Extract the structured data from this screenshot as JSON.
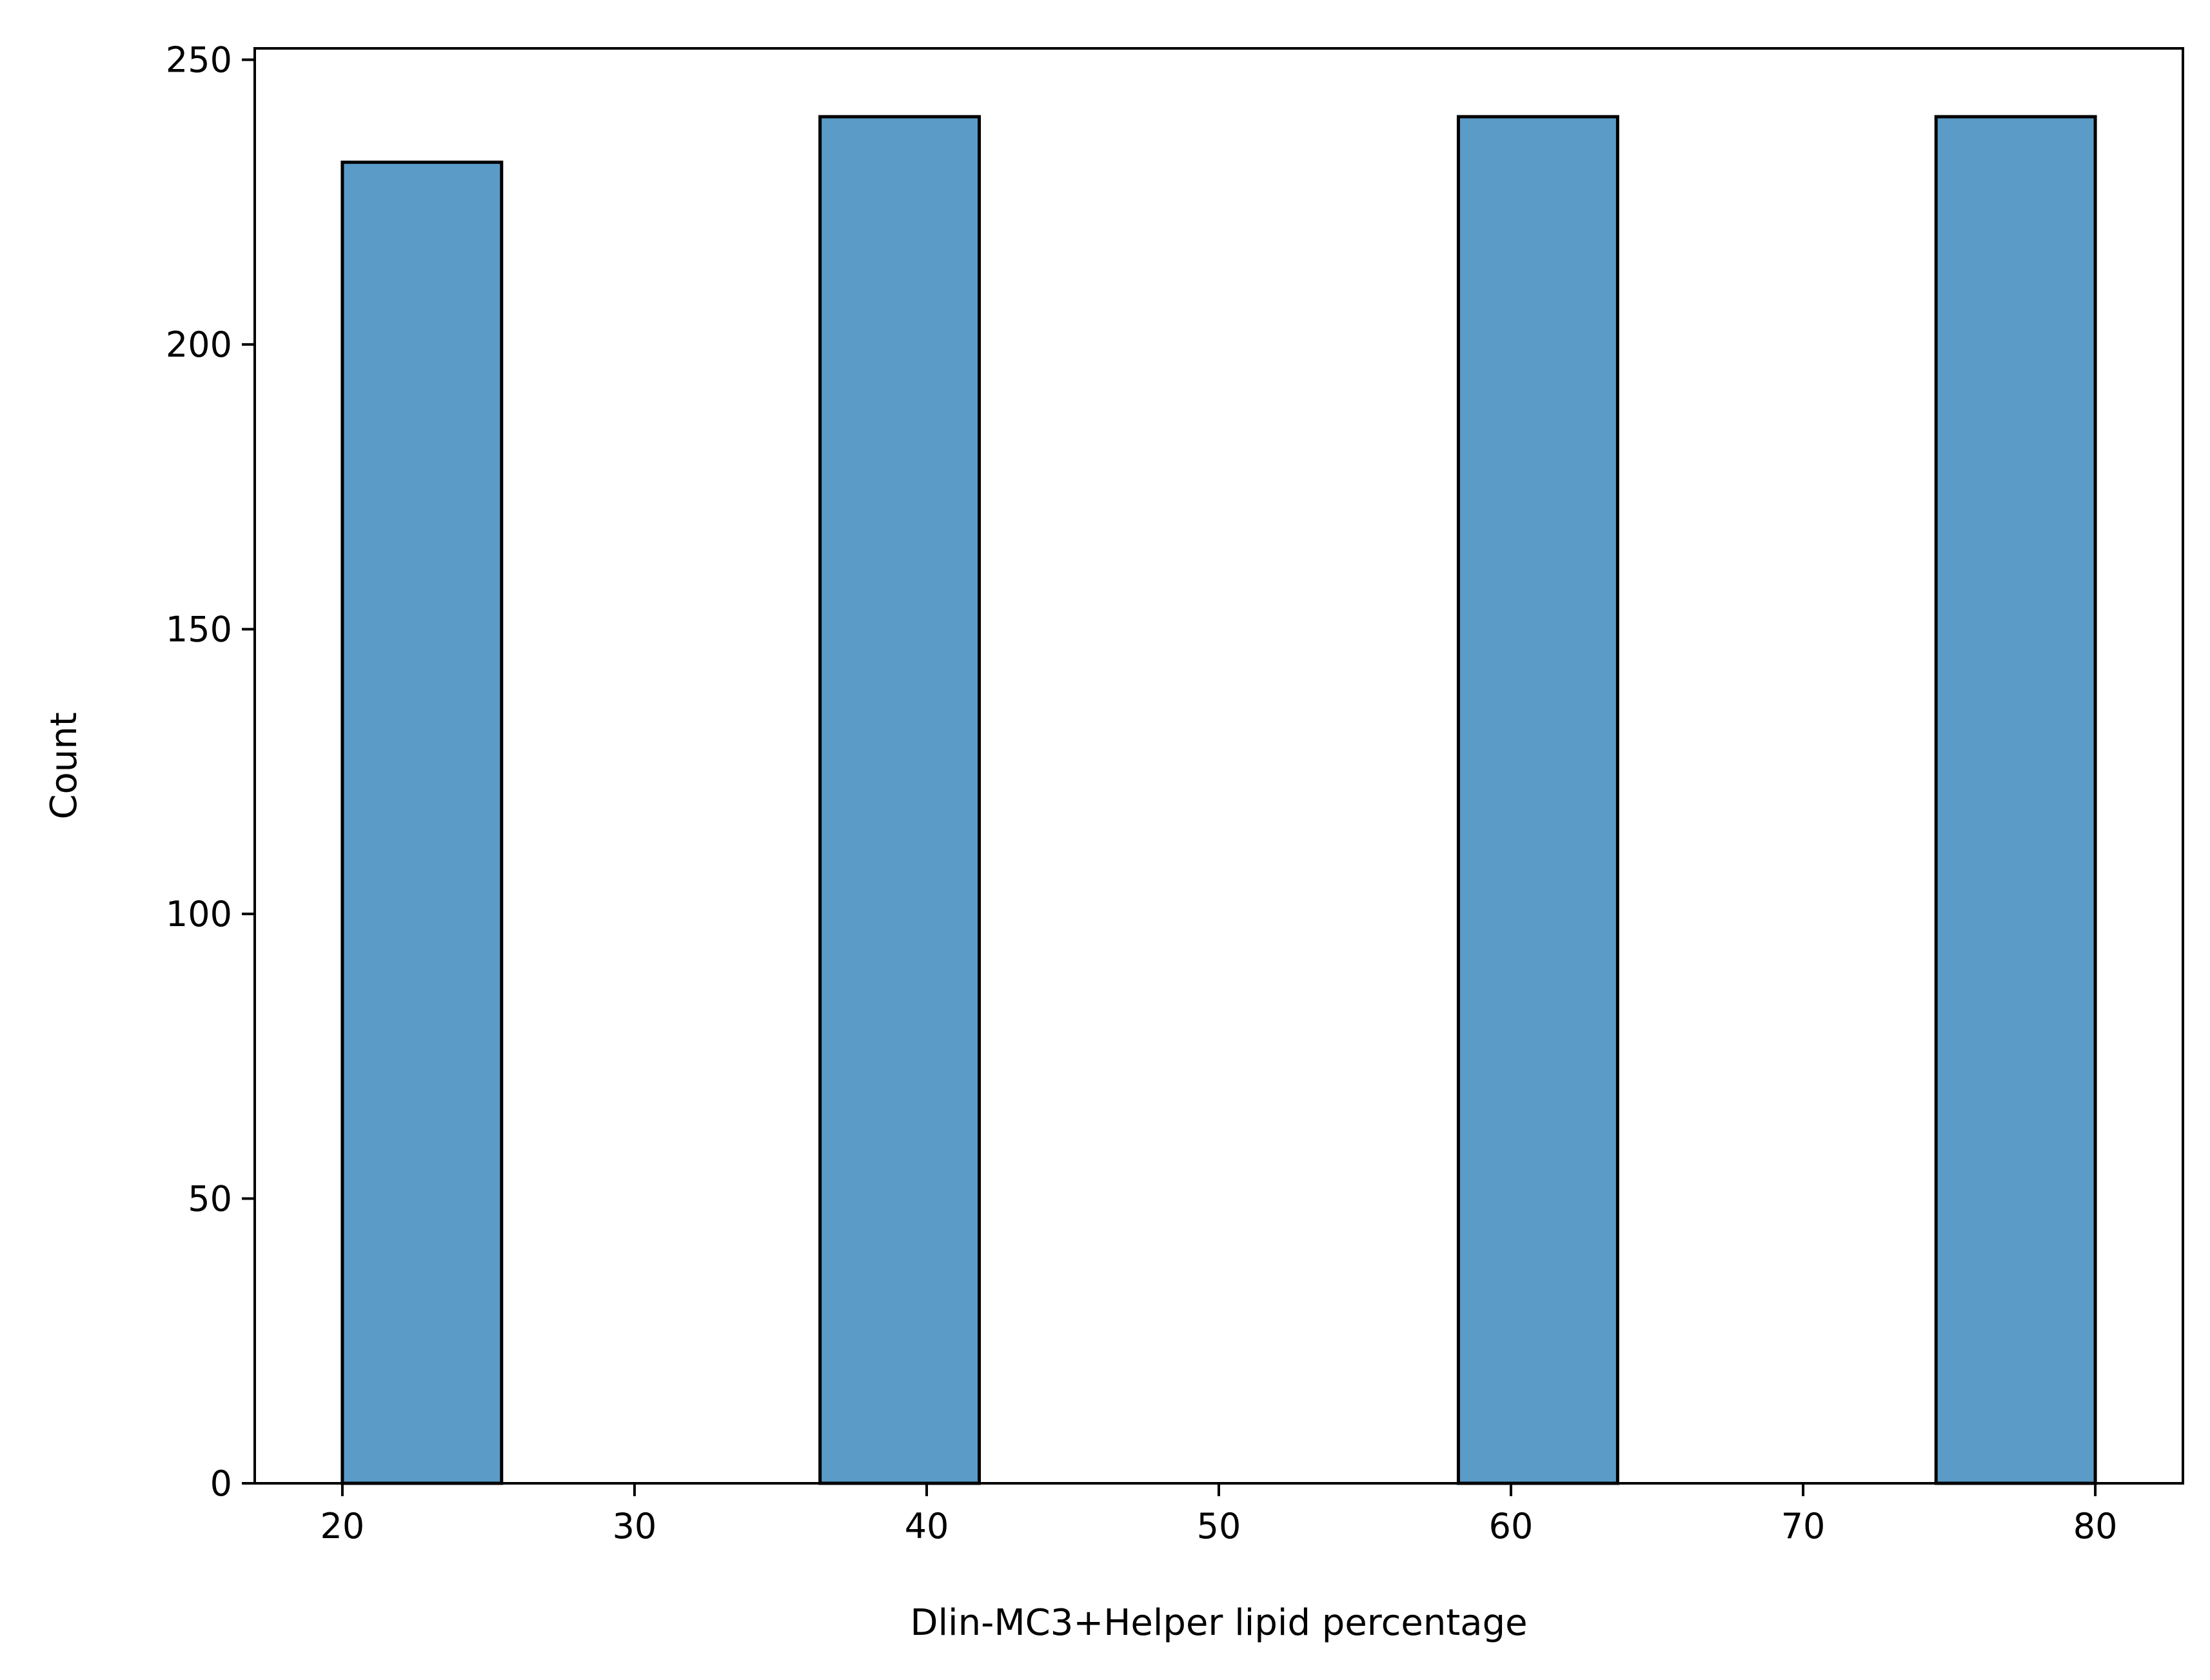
{
  "chart_data": {
    "type": "bar",
    "title": "",
    "xlabel": "Dlin-MC3+Helper lipid percentage",
    "ylabel": "Count",
    "xlim": [
      17,
      83
    ],
    "ylim": [
      0,
      252
    ],
    "xticks": [
      20,
      30,
      40,
      50,
      60,
      70,
      80
    ],
    "yticks": [
      0,
      50,
      100,
      150,
      200,
      250
    ],
    "grid": false,
    "legend": "none",
    "bar_color": "#5a9bc8",
    "edge_color": "#000000",
    "bins": [
      {
        "x0": 20.0,
        "x1": 25.45,
        "count": 232
      },
      {
        "x0": 36.35,
        "x1": 41.8,
        "count": 240
      },
      {
        "x0": 58.2,
        "x1": 63.65,
        "count": 240
      },
      {
        "x0": 74.55,
        "x1": 80.0,
        "count": 240
      }
    ]
  }
}
